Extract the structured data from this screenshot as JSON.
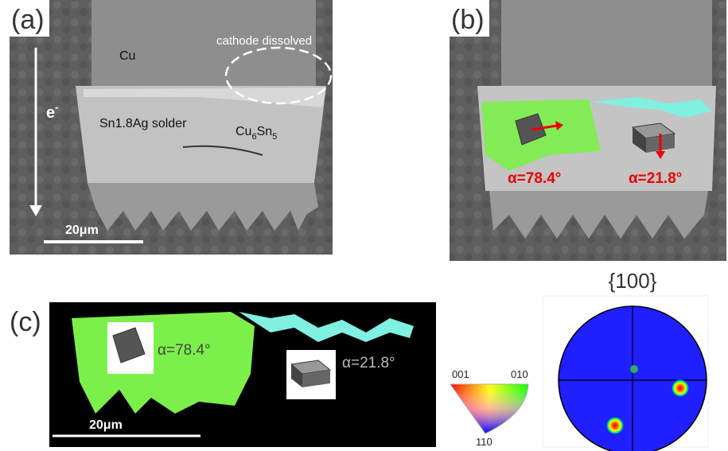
{
  "panel_a": {
    "label": "(a)",
    "cu": "Cu",
    "cathode": "cathode dissolved",
    "electron": {
      "base": "e",
      "sup": "-"
    },
    "solder": "Sn1.8Ag solder",
    "imc": [
      "Cu",
      "6",
      "Sn",
      "5"
    ],
    "scale_bar": "20μm"
  },
  "panel_b": {
    "label": "(b)",
    "angle_left": "α=78.4°",
    "angle_right": "α=21.8°"
  },
  "panel_c": {
    "label": "(c)",
    "angle_left": "α=78.4°",
    "angle_right": "α=21.8°",
    "scale_bar": "20μm"
  },
  "ipf_key": {
    "corners": [
      "001",
      "010",
      "110"
    ]
  },
  "pole_figure": {
    "title": "{100}"
  }
}
